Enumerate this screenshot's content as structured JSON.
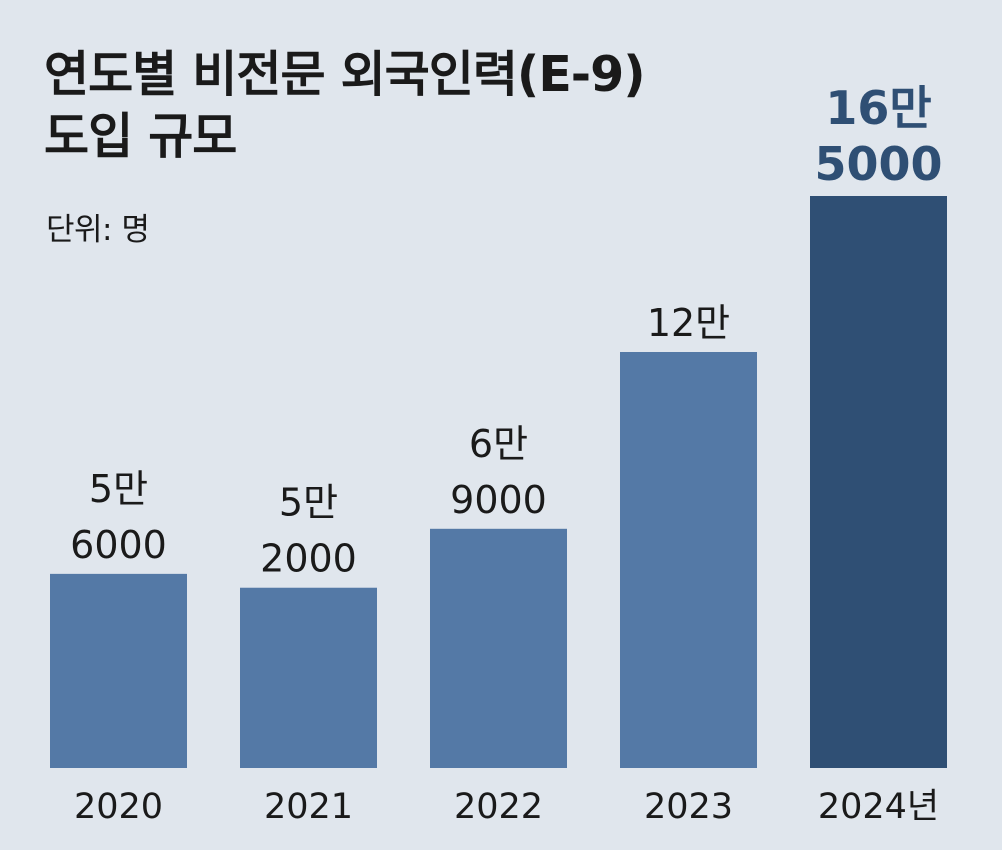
{
  "chart_data": {
    "type": "bar",
    "title_lines": [
      "연도별 비전문 외국인력(E-9)",
      "도입 규모"
    ],
    "unit_label": "단위: 명",
    "categories": [
      "2020",
      "2021",
      "2022",
      "2023",
      "2024년"
    ],
    "values": [
      56000,
      52000,
      69000,
      120000,
      165000
    ],
    "value_labels": [
      [
        "5만",
        "6000"
      ],
      [
        "5만",
        "2000"
      ],
      [
        "6만",
        "9000"
      ],
      [
        "12만"
      ],
      [
        "16만",
        "5000"
      ]
    ],
    "highlight_index": 4,
    "colors": {
      "bar": "#5479a6",
      "highlight_bar": "#2f4f74",
      "label": "#1a1a1a",
      "highlight_label": "#2f4f74",
      "background": "#e0e6ed"
    },
    "ylim": [
      0,
      165000
    ],
    "xlabel": "",
    "ylabel": ""
  }
}
